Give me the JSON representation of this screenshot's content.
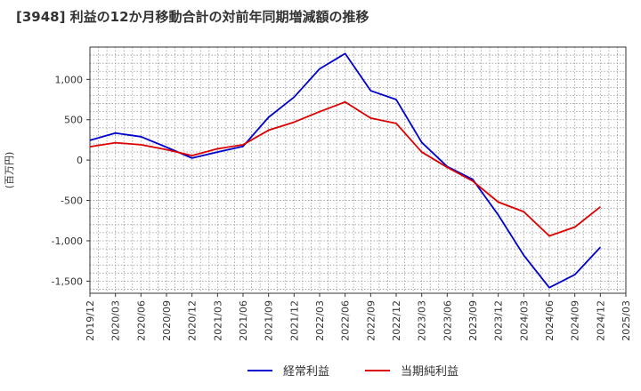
{
  "chart_data": {
    "type": "line",
    "title": "[3948]  利益の12か月移動合計の対前年同期増減額の推移",
    "ylabel": "(百万円)",
    "xlabel": "",
    "ylim": [
      -1650,
      1400
    ],
    "yticks": [
      1000,
      500,
      0,
      -500,
      -1000,
      -1500
    ],
    "ytick_labels": [
      "1,000",
      "500",
      "0",
      "-500",
      "-1,000",
      "-1,500"
    ],
    "x": [
      "2019/12",
      "2020/03",
      "2020/06",
      "2020/09",
      "2020/12",
      "2021/03",
      "2021/06",
      "2021/09",
      "2021/12",
      "2022/03",
      "2022/06",
      "2022/09",
      "2022/12",
      "2023/03",
      "2023/06",
      "2023/09",
      "2023/12",
      "2024/03",
      "2024/06",
      "2024/09",
      "2024/12",
      "2025/03"
    ],
    "grid": true,
    "legend_position": "bottom",
    "series": [
      {
        "name": "経常利益",
        "color": "#0000cc",
        "values": [
          245,
          335,
          290,
          160,
          25,
          100,
          170,
          530,
          780,
          1130,
          1320,
          860,
          750,
          220,
          -80,
          -240,
          -680,
          -1180,
          -1580,
          -1420,
          -1080,
          null
        ]
      },
      {
        "name": "当期純利益",
        "color": "#dd0000",
        "values": [
          165,
          215,
          190,
          130,
          55,
          140,
          190,
          370,
          470,
          600,
          720,
          520,
          455,
          100,
          -90,
          -260,
          -520,
          -640,
          -940,
          -830,
          -580,
          null
        ]
      }
    ]
  }
}
